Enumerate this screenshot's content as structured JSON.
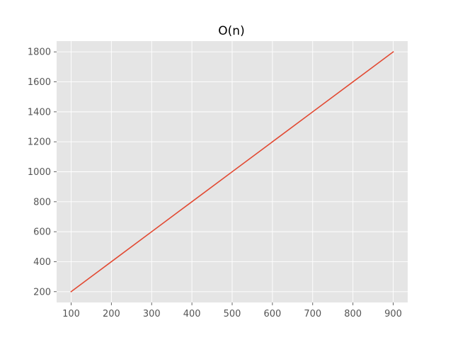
{
  "chart_data": {
    "type": "line",
    "title": "O(n)",
    "xlabel": "",
    "ylabel": "",
    "xlim": [
      64,
      936
    ],
    "ylim": [
      128,
      1872
    ],
    "x_ticks": [
      100,
      200,
      300,
      400,
      500,
      600,
      700,
      800,
      900
    ],
    "y_ticks": [
      200,
      400,
      600,
      800,
      1000,
      1200,
      1400,
      1600,
      1800
    ],
    "grid": true,
    "legend": "none",
    "series": [
      {
        "x": [
          100,
          200,
          300,
          400,
          500,
          600,
          700,
          800,
          900
        ],
        "y": [
          200,
          400,
          600,
          800,
          1000,
          1200,
          1400,
          1600,
          1800
        ],
        "color": "#E24A33"
      }
    ],
    "colors": {
      "background": "#E5E5E5",
      "grid": "#FFFFFF",
      "tick": "#555555",
      "line": "#E24A33"
    }
  }
}
